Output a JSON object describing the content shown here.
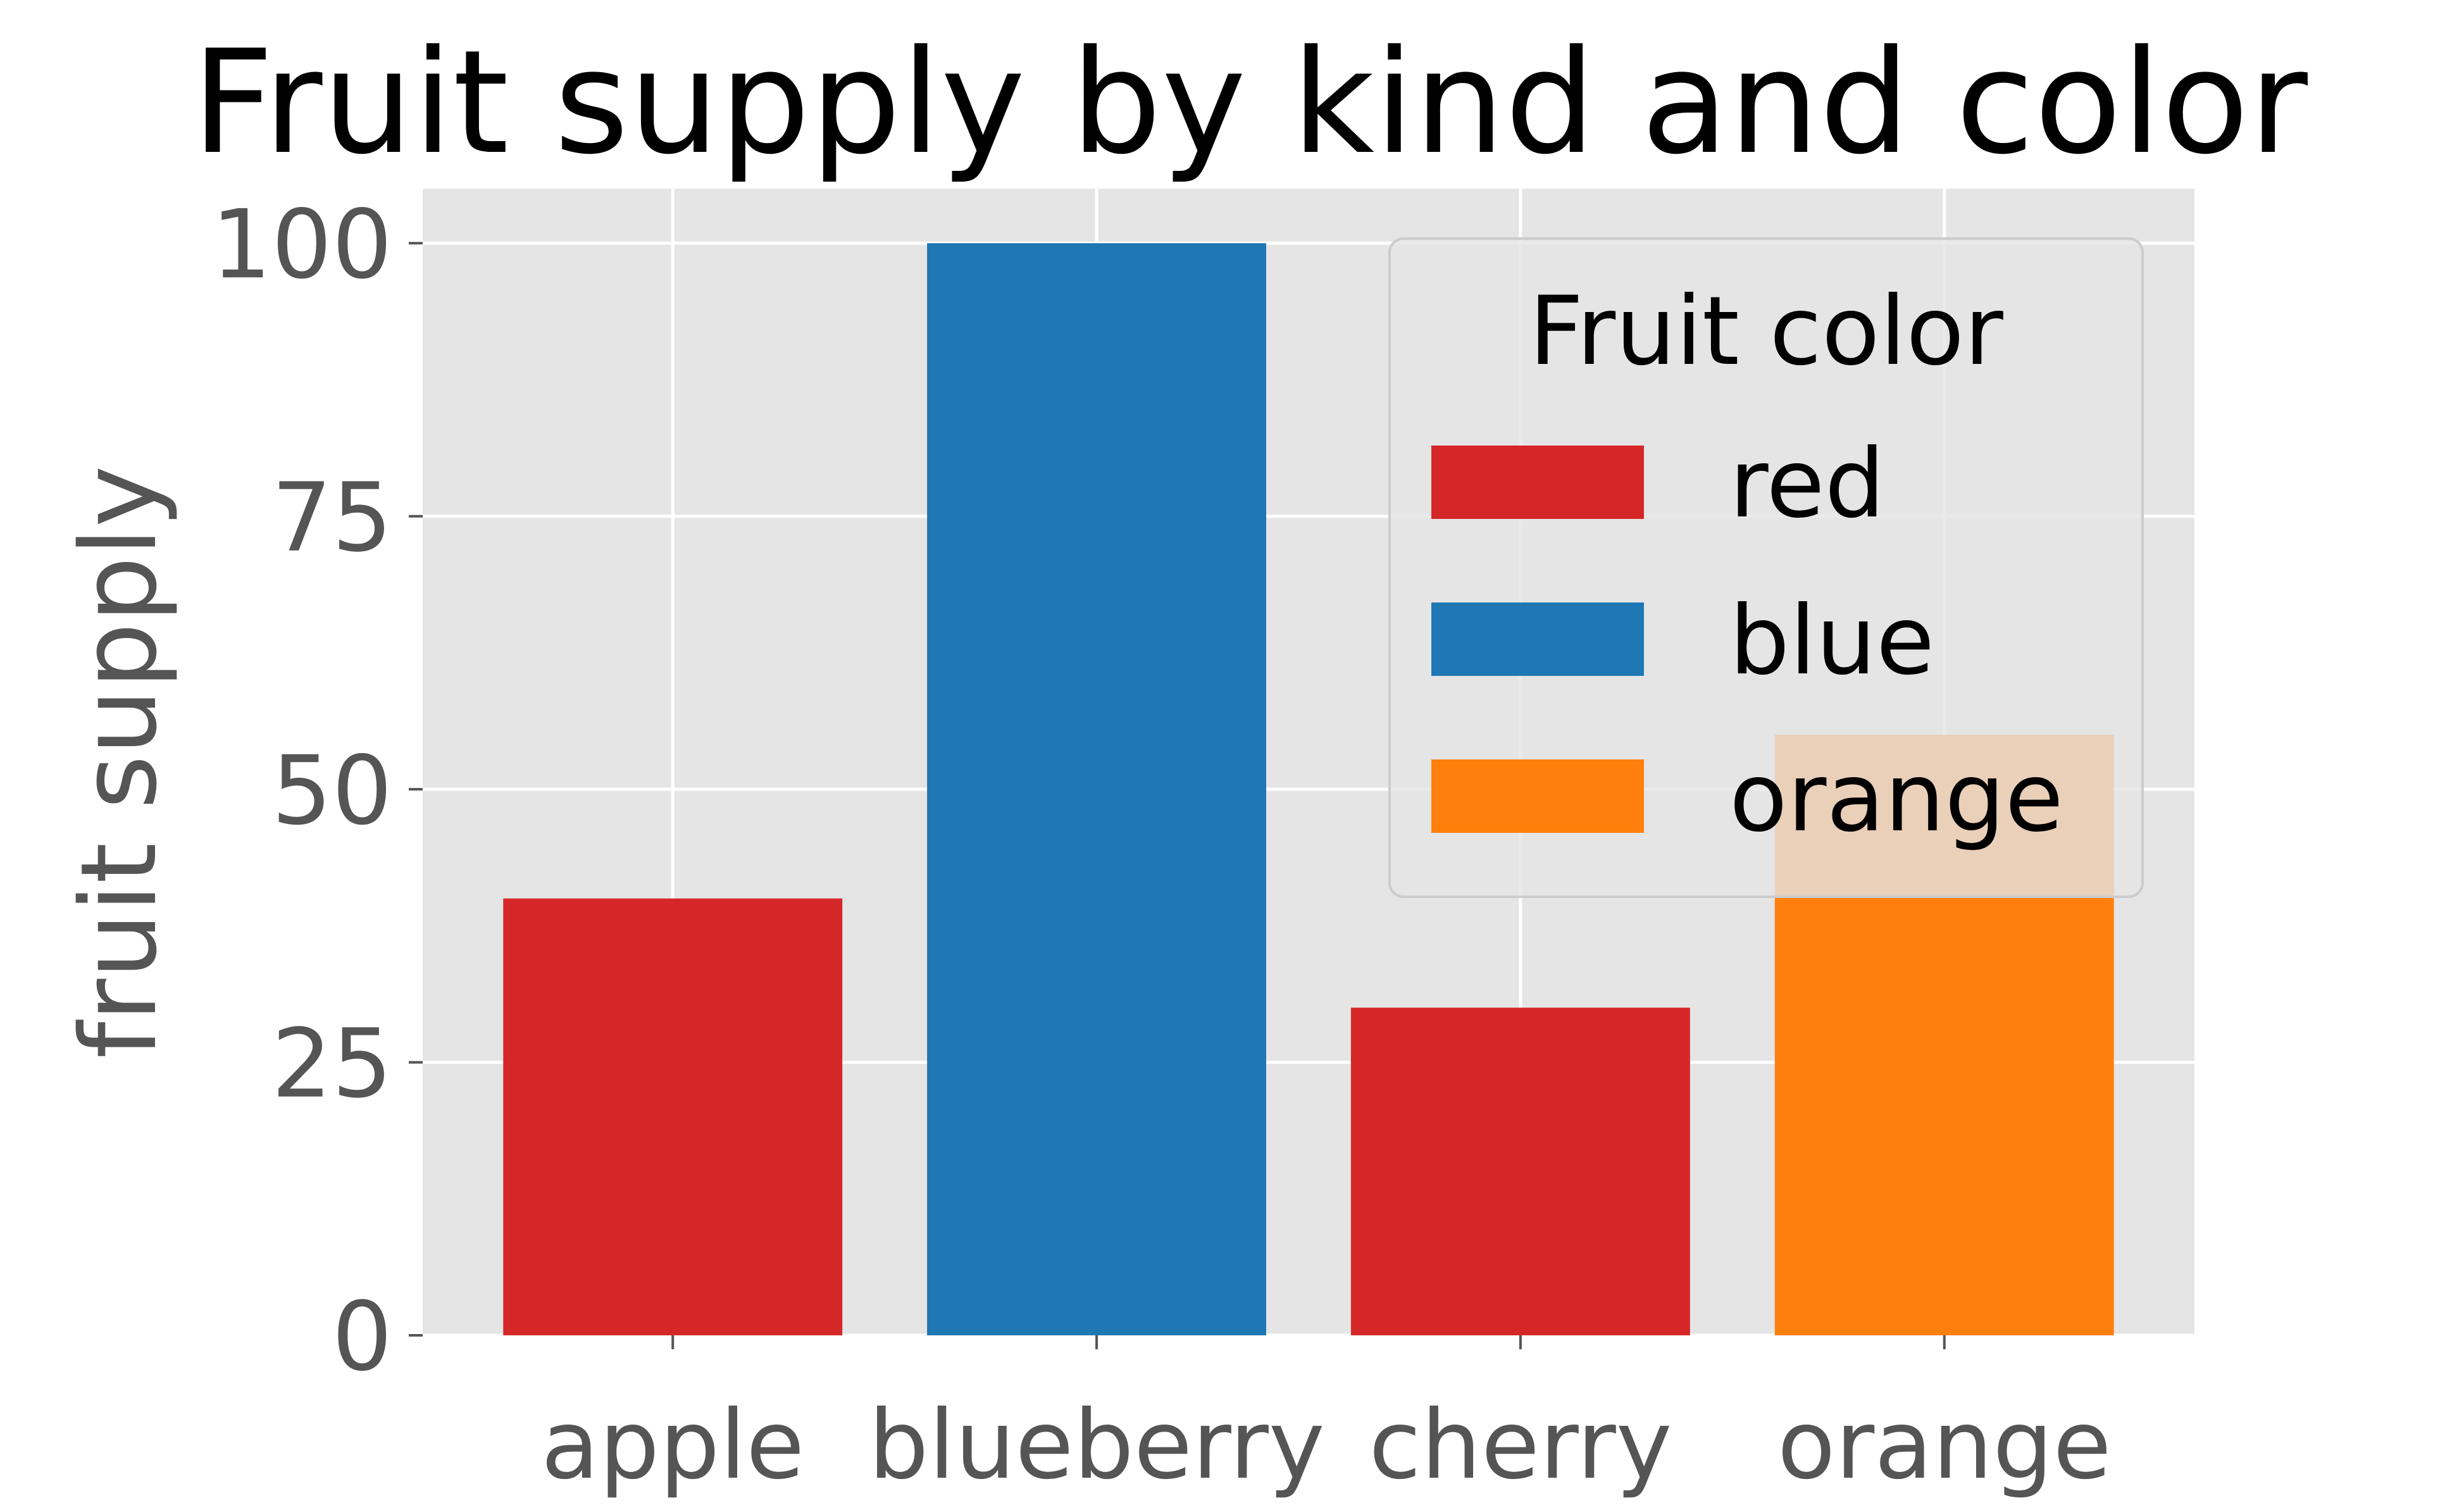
{
  "chart_data": {
    "type": "bar",
    "title": "Fruit supply by kind and color",
    "xlabel": "",
    "ylabel": "fruit supply",
    "categories": [
      "apple",
      "blueberry",
      "cherry",
      "orange"
    ],
    "values": [
      40,
      100,
      30,
      55
    ],
    "bar_colors": [
      "#d62728",
      "#1f77b4",
      "#d62728",
      "#ff7f0e"
    ],
    "ylim": [
      0,
      105
    ],
    "yticks": [
      0,
      25,
      50,
      75,
      100
    ],
    "grid": true,
    "background": "#e5e5e5",
    "legend": {
      "title": "Fruit color",
      "placement": "top-right",
      "entries": [
        {
          "label": "red",
          "color": "#d62728"
        },
        {
          "label": "blue",
          "color": "#1f77b4"
        },
        {
          "label": "orange",
          "color": "#ff7f0e"
        }
      ]
    }
  }
}
